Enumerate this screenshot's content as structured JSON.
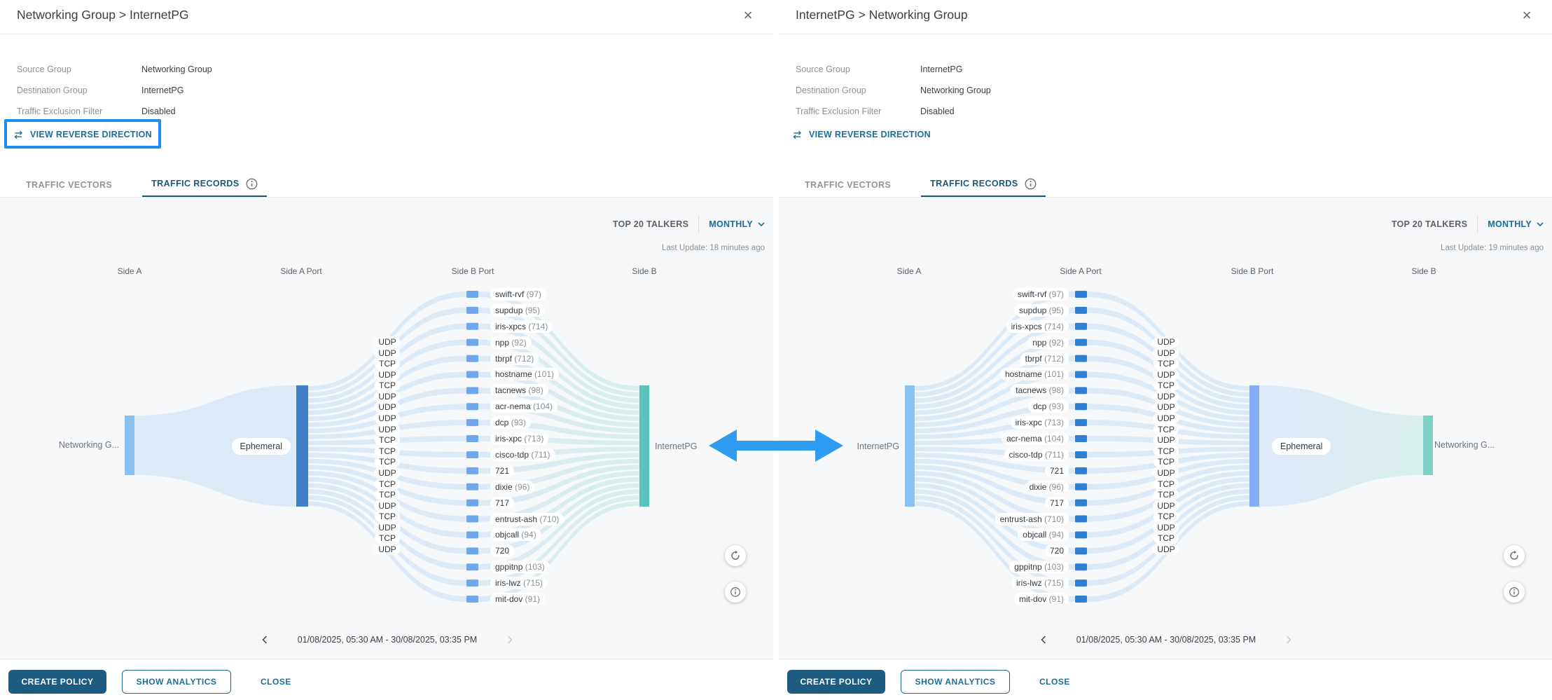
{
  "icons": {
    "close": "×"
  },
  "arrow": {
    "name": "bidirectional-traffic-arrow",
    "color": "#2f9cf1"
  },
  "panels": [
    {
      "title": "Networking Group > InternetPG",
      "details": [
        {
          "label": "Source Group",
          "value": "Networking Group"
        },
        {
          "label": "Destination Group",
          "value": "InternetPG"
        },
        {
          "label": "Traffic Exclusion Filter",
          "value": "Disabled"
        }
      ],
      "reverse_link": "VIEW REVERSE DIRECTION",
      "reverse_link_highlighted": true,
      "tabs": [
        {
          "label": "TRAFFIC VECTORS",
          "active": false
        },
        {
          "label": "TRAFFIC RECORDS",
          "active": true
        }
      ],
      "toolbar": {
        "talkers": "TOP 20 TALKERS",
        "period": "MONTHLY"
      },
      "last_update": "Last Update: 18 minutes ago",
      "columns": [
        "Side A",
        "Side A Port",
        "Side B Port",
        "Side B"
      ],
      "nodes": {
        "start": "Networking G...",
        "mid": "Ephemeral",
        "end": "InternetPG"
      },
      "sankey_colors": {
        "flow": "#dce9f7",
        "side_a": "#87c2f2",
        "ephemeral": "#4080c6",
        "side_b": "#5ac3ba",
        "square": "#6fa7e9"
      },
      "rows": [
        {
          "name": "swift-rvf",
          "count": "(97)",
          "port": "UDP"
        },
        {
          "name": "supdup",
          "count": "(95)",
          "port": "UDP"
        },
        {
          "name": "iris-xpcs",
          "count": "(714)",
          "port": "TCP"
        },
        {
          "name": "npp",
          "count": "(92)",
          "port": "UDP"
        },
        {
          "name": "tbrpf",
          "count": "(712)",
          "port": "TCP"
        },
        {
          "name": "hostname",
          "count": "(101)",
          "port": "UDP"
        },
        {
          "name": "tacnews",
          "count": "(98)",
          "port": "UDP"
        },
        {
          "name": "acr-nema",
          "count": "(104)",
          "port": "UDP"
        },
        {
          "name": "dcp",
          "count": "(93)",
          "port": "UDP"
        },
        {
          "name": "iris-xpc",
          "count": "(713)",
          "port": "TCP"
        },
        {
          "name": "cisco-tdp",
          "count": "(711)",
          "port": "TCP"
        },
        {
          "name": "721",
          "count": "",
          "port": "TCP"
        },
        {
          "name": "dixie",
          "count": "(96)",
          "port": "UDP"
        },
        {
          "name": "717",
          "count": "",
          "port": "TCP"
        },
        {
          "name": "entrust-ash",
          "count": "(710)",
          "port": "TCP"
        },
        {
          "name": "objcall",
          "count": "(94)",
          "port": "UDP"
        },
        {
          "name": "720",
          "count": "",
          "port": "TCP"
        },
        {
          "name": "gppitnp",
          "count": "(103)",
          "port": "UDP"
        },
        {
          "name": "iris-lwz",
          "count": "(715)",
          "port": "TCP"
        },
        {
          "name": "mit-dov",
          "count": "(91)",
          "port": "UDP"
        }
      ],
      "date_range": "01/08/2025, 05:30 AM - 30/08/2025, 03:35 PM",
      "footer": {
        "create": "CREATE POLICY",
        "analytics": "SHOW ANALYTICS",
        "close": "CLOSE"
      }
    },
    {
      "title": "InternetPG > Networking Group",
      "details": [
        {
          "label": "Source Group",
          "value": "InternetPG"
        },
        {
          "label": "Destination Group",
          "value": "Networking Group"
        },
        {
          "label": "Traffic Exclusion Filter",
          "value": "Disabled"
        }
      ],
      "reverse_link": "VIEW REVERSE DIRECTION",
      "reverse_link_highlighted": false,
      "tabs": [
        {
          "label": "TRAFFIC VECTORS",
          "active": false
        },
        {
          "label": "TRAFFIC RECORDS",
          "active": true
        }
      ],
      "toolbar": {
        "talkers": "TOP 20 TALKERS",
        "period": "MONTHLY"
      },
      "last_update": "Last Update: 19 minutes ago",
      "columns": [
        "Side A",
        "Side A Port",
        "Side B Port",
        "Side B"
      ],
      "nodes": {
        "start": "InternetPG",
        "mid": "Ephemeral",
        "end": "Networking G..."
      },
      "sankey_colors": {
        "flow": "#dce9f7",
        "side_a": "#87c2f2",
        "ephemeral": "#86acf3",
        "side_b": "#80d0c7",
        "square": "#2f80d2"
      },
      "rows": [
        {
          "name": "swift-rvf",
          "count": "(97)",
          "port": "UDP"
        },
        {
          "name": "supdup",
          "count": "(95)",
          "port": "UDP"
        },
        {
          "name": "iris-xpcs",
          "count": "(714)",
          "port": "TCP"
        },
        {
          "name": "npp",
          "count": "(92)",
          "port": "UDP"
        },
        {
          "name": "tbrpf",
          "count": "(712)",
          "port": "TCP"
        },
        {
          "name": "hostname",
          "count": "(101)",
          "port": "UDP"
        },
        {
          "name": "tacnews",
          "count": "(98)",
          "port": "UDP"
        },
        {
          "name": "dcp",
          "count": "(93)",
          "port": "UDP"
        },
        {
          "name": "iris-xpc",
          "count": "(713)",
          "port": "TCP"
        },
        {
          "name": "acr-nema",
          "count": "(104)",
          "port": "UDP"
        },
        {
          "name": "cisco-tdp",
          "count": "(711)",
          "port": "TCP"
        },
        {
          "name": "721",
          "count": "",
          "port": "TCP"
        },
        {
          "name": "dixie",
          "count": "(96)",
          "port": "UDP"
        },
        {
          "name": "717",
          "count": "",
          "port": "TCP"
        },
        {
          "name": "entrust-ash",
          "count": "(710)",
          "port": "TCP"
        },
        {
          "name": "objcall",
          "count": "(94)",
          "port": "UDP"
        },
        {
          "name": "720",
          "count": "",
          "port": "TCP"
        },
        {
          "name": "gppitnp",
          "count": "(103)",
          "port": "UDP"
        },
        {
          "name": "iris-lwz",
          "count": "(715)",
          "port": "TCP"
        },
        {
          "name": "mit-dov",
          "count": "(91)",
          "port": "UDP"
        }
      ],
      "date_range": "01/08/2025, 05:30 AM - 30/08/2025, 03:35 PM",
      "footer": {
        "create": "CREATE POLICY",
        "analytics": "SHOW ANALYTICS",
        "close": "CLOSE"
      }
    }
  ]
}
